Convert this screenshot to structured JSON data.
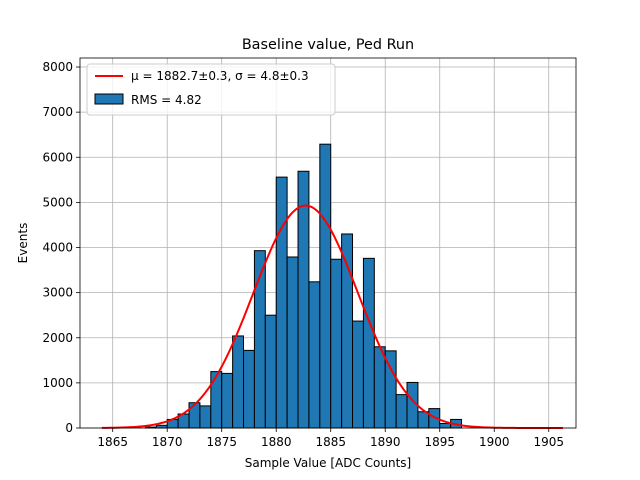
{
  "chart_data": {
    "type": "bar",
    "title": "Baseline value, Ped Run",
    "xlabel": "Sample Value [ADC Counts]",
    "ylabel": "Events",
    "xlim": [
      1862,
      1907.5
    ],
    "ylim": [
      0,
      8200
    ],
    "xticks": [
      1865,
      1870,
      1875,
      1880,
      1885,
      1890,
      1895,
      1900,
      1905
    ],
    "yticks": [
      0,
      1000,
      2000,
      3000,
      4000,
      5000,
      6000,
      7000,
      8000
    ],
    "grid": true,
    "legend_position": "top-left",
    "bin_width": 1,
    "histogram": {
      "name": "RMS = 4.82",
      "color": "#1f77b4",
      "edge_color": "#000000",
      "bin_edges": [
        1868,
        1869,
        1870,
        1871,
        1872,
        1873,
        1874,
        1875,
        1876,
        1877,
        1878,
        1879,
        1880,
        1881,
        1882,
        1883,
        1884,
        1885,
        1886,
        1887,
        1888,
        1889,
        1890,
        1891,
        1892,
        1893,
        1894,
        1895,
        1896,
        1897
      ],
      "counts": [
        20,
        60,
        190,
        310,
        560,
        490,
        1250,
        1210,
        2040,
        1720,
        3930,
        2500,
        5560,
        3790,
        5690,
        3240,
        6290,
        3740,
        4300,
        2370,
        3760,
        1800,
        1710,
        740,
        1010,
        360,
        430,
        100,
        190
      ]
    },
    "fit": {
      "name": "μ = 1882.7±0.3, σ = 4.8±0.3",
      "mu": 1882.7,
      "sigma": 4.8,
      "amplitude": 4930,
      "x_range": [
        1864,
        1906.3
      ],
      "color": "#ff0000"
    }
  }
}
